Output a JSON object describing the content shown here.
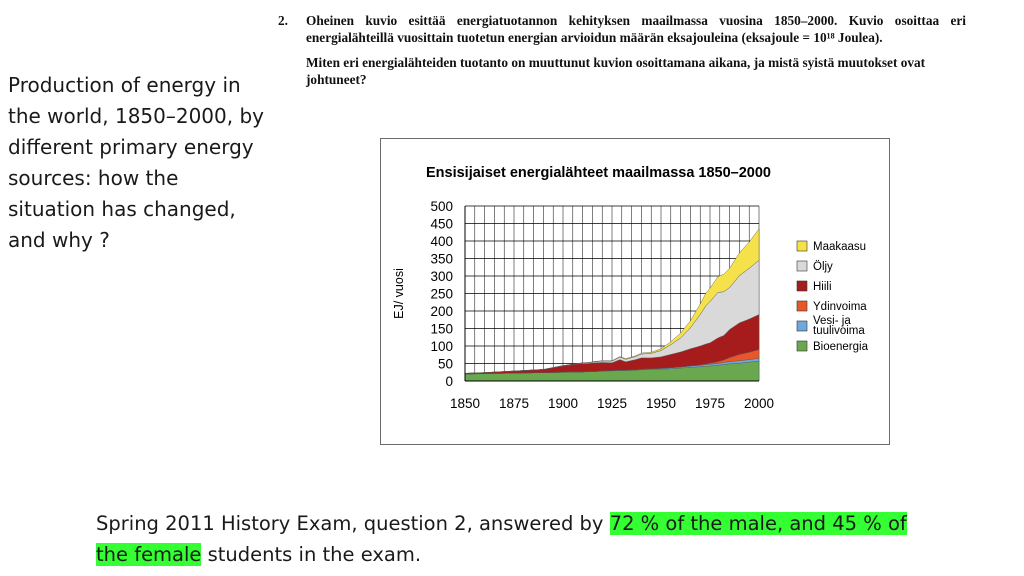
{
  "side_caption": "Production of energy in the world, 1850–2000, by different primary energy sources: how the situation has changed, and why ?",
  "question": {
    "number": "2.",
    "paragraph1": "Oheinen kuvio esittää energiatuotannon kehityksen maailmassa vuosina 1850–2000. Kuvio osoittaa eri energialähteillä vuosittain tuotetun energian arvioidun määrän eksajouleina (eksajoule = 10¹⁸ Joulea).",
    "paragraph2": "Miten eri energialähteiden tuotanto on muuttunut kuvion osoittamana aikana, ja mistä syistä muutokset ovat johtuneet?"
  },
  "footer": {
    "text_before": "Spring 2011 History Exam, question 2, answered by ",
    "highlight": "72 % of the male, and 45 % of the female",
    "text_after": " students in the exam.",
    "highlight_color": "#33ff33"
  },
  "chart_data": {
    "type": "area",
    "stacked": true,
    "title": "Ensisijaiset energialähteet maailmassa 1850–2000",
    "xlabel": "",
    "ylabel": "EJ/ vuosi",
    "x": [
      1850,
      1860,
      1870,
      1880,
      1890,
      1900,
      1905,
      1910,
      1913,
      1916,
      1920,
      1925,
      1929,
      1932,
      1937,
      1940,
      1945,
      1950,
      1955,
      1960,
      1965,
      1970,
      1973,
      1975,
      1979,
      1982,
      1985,
      1990,
      1995,
      2000
    ],
    "xlim": [
      1850,
      2000
    ],
    "ylim": [
      0,
      500
    ],
    "xticks": [
      "1850",
      "1875",
      "1900",
      "1925",
      "1950",
      "1975",
      "2000"
    ],
    "yticks": [
      "0",
      "50",
      "100",
      "150",
      "200",
      "250",
      "300",
      "350",
      "400",
      "450",
      "500"
    ],
    "legend_position": "right",
    "grid": true,
    "series": [
      {
        "name": "Bioenergia",
        "color": "#6aa84f",
        "values": [
          20,
          21,
          22,
          23,
          24,
          25,
          26,
          26,
          27,
          27,
          28,
          29,
          30,
          30,
          31,
          32,
          33,
          34,
          35,
          37,
          39,
          41,
          42,
          43,
          45,
          47,
          49,
          51,
          54,
          57
        ]
      },
      {
        "name": "Vesi- ja tuulivoima",
        "color": "#6fa8dc",
        "values": [
          0,
          0,
          0,
          0,
          0,
          0,
          0,
          0,
          0,
          0,
          1,
          1,
          1,
          1,
          1,
          2,
          2,
          2,
          3,
          3,
          4,
          4,
          5,
          5,
          5,
          6,
          6,
          7,
          7,
          8
        ]
      },
      {
        "name": "Ydinvoima",
        "color": "#e8562a",
        "values": [
          0,
          0,
          0,
          0,
          0,
          0,
          0,
          0,
          0,
          0,
          0,
          0,
          0,
          0,
          0,
          0,
          0,
          0,
          0,
          0,
          0,
          1,
          2,
          3,
          5,
          7,
          12,
          18,
          21,
          25
        ]
      },
      {
        "name": "Hiili",
        "color": "#a61c1c",
        "values": [
          2,
          3,
          5,
          7,
          9,
          18,
          21,
          24,
          23,
          25,
          24,
          22,
          30,
          24,
          29,
          32,
          31,
          33,
          38,
          43,
          49,
          54,
          57,
          58,
          68,
          70,
          80,
          90,
          95,
          100
        ]
      },
      {
        "name": "Öljy",
        "color": "#d9d9d9",
        "values": [
          0,
          0,
          0,
          0,
          0,
          1,
          1,
          2,
          2,
          3,
          4,
          5,
          7,
          7,
          9,
          11,
          13,
          18,
          28,
          40,
          60,
          90,
          110,
          118,
          130,
          125,
          120,
          135,
          145,
          155
        ]
      },
      {
        "name": "Maakaasu",
        "color": "#f5e14a",
        "values": [
          0,
          0,
          0,
          0,
          0,
          0,
          0,
          0,
          1,
          1,
          1,
          1,
          2,
          2,
          2,
          3,
          3,
          5,
          8,
          14,
          20,
          30,
          36,
          38,
          45,
          50,
          55,
          65,
          75,
          90
        ]
      }
    ]
  }
}
